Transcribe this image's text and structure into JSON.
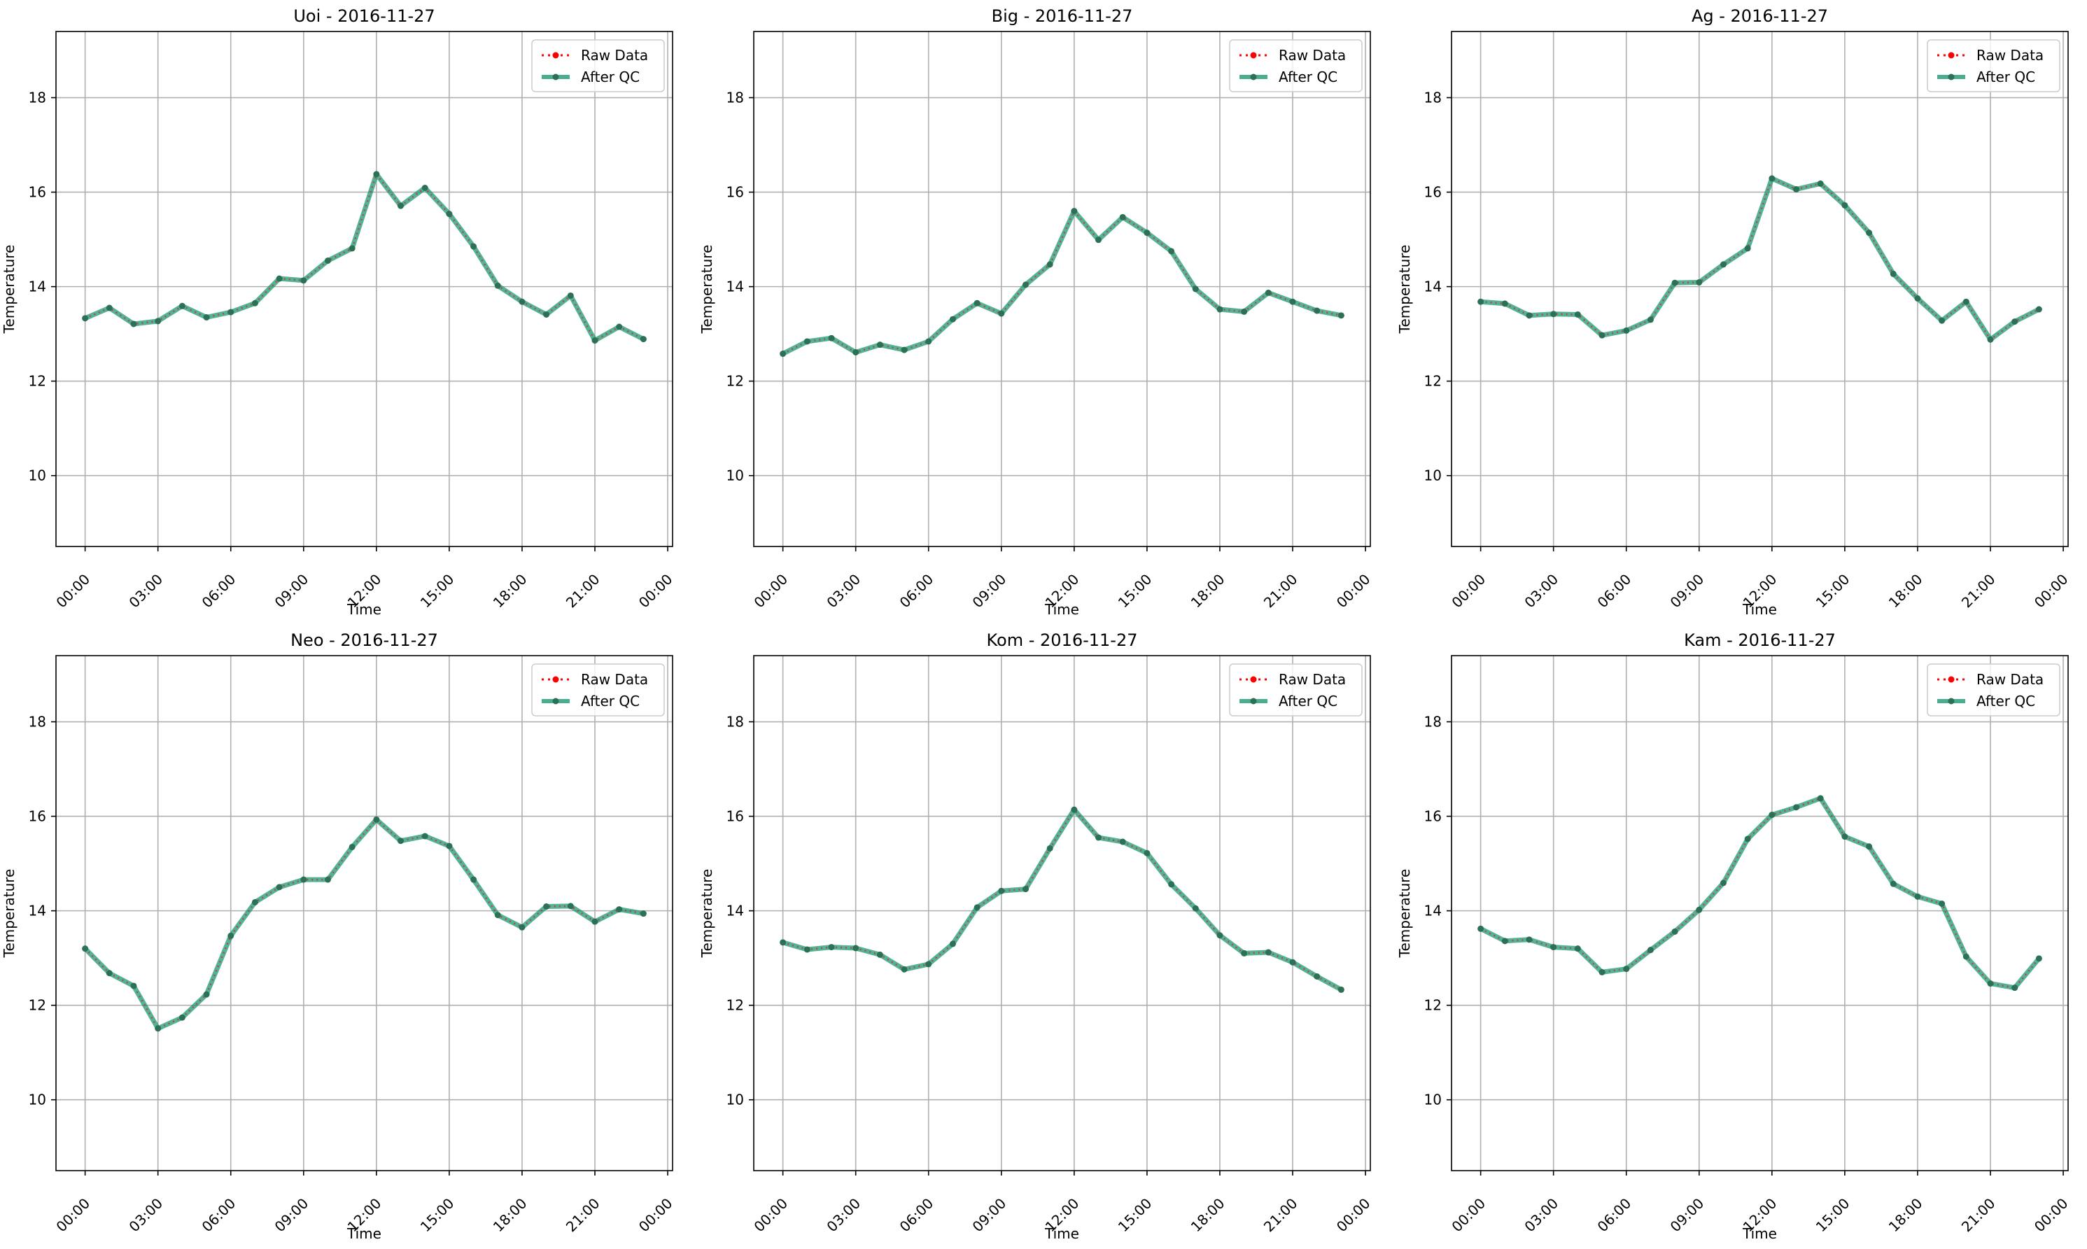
{
  "chart_data": [
    {
      "type": "line",
      "title": "Uoi - 2016-11-27",
      "xlabel": "Time",
      "ylabel": "Temperature",
      "x_ticks": [
        "00:00",
        "03:00",
        "06:00",
        "09:00",
        "12:00",
        "15:00",
        "18:00",
        "21:00",
        "00:00"
      ],
      "y_ticks": [
        10,
        12,
        14,
        16,
        18
      ],
      "xlim_hours": [
        -1.2,
        24.2
      ],
      "ylim": [
        8.5,
        19.4
      ],
      "grid": true,
      "legend": "top-right",
      "legend_entries": [
        "Raw Data",
        "After QC"
      ],
      "x_hours": [
        0,
        1,
        2,
        3,
        4,
        5,
        6,
        7,
        8,
        9,
        10,
        11,
        12,
        13,
        14,
        15,
        16,
        17,
        18,
        19,
        20,
        21,
        22,
        23
      ],
      "series": [
        {
          "name": "Raw Data",
          "values": [
            13.33,
            13.55,
            13.21,
            13.27,
            13.59,
            13.35,
            13.46,
            13.65,
            14.17,
            14.13,
            14.55,
            14.81,
            16.38,
            15.71,
            16.09,
            15.54,
            14.85,
            14.02,
            13.68,
            13.41,
            13.81,
            12.86,
            13.15,
            12.89
          ]
        },
        {
          "name": "After QC",
          "values": [
            13.33,
            13.55,
            13.21,
            13.27,
            13.59,
            13.35,
            13.46,
            13.65,
            14.17,
            14.13,
            14.55,
            14.81,
            16.38,
            15.71,
            16.09,
            15.54,
            14.85,
            14.02,
            13.68,
            13.41,
            13.81,
            12.86,
            13.15,
            12.89
          ]
        }
      ]
    },
    {
      "type": "line",
      "title": "Big - 2016-11-27",
      "xlabel": "Time",
      "ylabel": "Temperature",
      "x_ticks": [
        "00:00",
        "03:00",
        "06:00",
        "09:00",
        "12:00",
        "15:00",
        "18:00",
        "21:00",
        "00:00"
      ],
      "y_ticks": [
        10,
        12,
        14,
        16,
        18
      ],
      "xlim_hours": [
        -1.2,
        24.2
      ],
      "ylim": [
        8.5,
        19.4
      ],
      "grid": true,
      "legend": "top-right",
      "legend_entries": [
        "Raw Data",
        "After QC"
      ],
      "x_hours": [
        0,
        1,
        2,
        3,
        4,
        5,
        6,
        7,
        8,
        9,
        10,
        11,
        12,
        13,
        14,
        15,
        16,
        17,
        18,
        19,
        20,
        21,
        22,
        23
      ],
      "series": [
        {
          "name": "Raw Data",
          "values": [
            12.58,
            12.84,
            12.91,
            12.61,
            12.77,
            12.66,
            12.84,
            13.31,
            13.65,
            13.43,
            14.04,
            14.47,
            15.6,
            14.99,
            15.47,
            15.14,
            14.75,
            13.95,
            13.52,
            13.47,
            13.87,
            13.68,
            13.49,
            13.39
          ]
        },
        {
          "name": "After QC",
          "values": [
            12.58,
            12.84,
            12.91,
            12.61,
            12.77,
            12.66,
            12.84,
            13.31,
            13.65,
            13.43,
            14.04,
            14.47,
            15.6,
            14.99,
            15.47,
            15.14,
            14.75,
            13.95,
            13.52,
            13.47,
            13.87,
            13.68,
            13.49,
            13.39
          ]
        }
      ]
    },
    {
      "type": "line",
      "title": "Ag - 2016-11-27",
      "xlabel": "Time",
      "ylabel": "Temperature",
      "x_ticks": [
        "00:00",
        "03:00",
        "06:00",
        "09:00",
        "12:00",
        "15:00",
        "18:00",
        "21:00",
        "00:00"
      ],
      "y_ticks": [
        10,
        12,
        14,
        16,
        18
      ],
      "xlim_hours": [
        -1.2,
        24.2
      ],
      "ylim": [
        8.5,
        19.4
      ],
      "grid": true,
      "legend": "top-right",
      "legend_entries": [
        "Raw Data",
        "After QC"
      ],
      "x_hours": [
        0,
        1,
        2,
        3,
        4,
        5,
        6,
        7,
        8,
        9,
        10,
        11,
        12,
        13,
        14,
        15,
        16,
        17,
        18,
        19,
        20,
        21,
        22,
        23
      ],
      "series": [
        {
          "name": "Raw Data",
          "values": [
            13.68,
            13.64,
            13.39,
            13.42,
            13.41,
            12.97,
            13.07,
            13.3,
            14.08,
            14.09,
            14.47,
            14.81,
            16.29,
            16.06,
            16.18,
            15.72,
            15.14,
            14.27,
            13.75,
            13.28,
            13.68,
            12.88,
            13.26,
            13.52
          ]
        },
        {
          "name": "After QC",
          "values": [
            13.68,
            13.64,
            13.39,
            13.42,
            13.41,
            12.97,
            13.07,
            13.3,
            14.08,
            14.09,
            14.47,
            14.81,
            16.29,
            16.06,
            16.18,
            15.72,
            15.14,
            14.27,
            13.75,
            13.28,
            13.68,
            12.88,
            13.26,
            13.52
          ]
        }
      ]
    },
    {
      "type": "line",
      "title": "Neo - 2016-11-27",
      "xlabel": "Time",
      "ylabel": "Temperature",
      "x_ticks": [
        "00:00",
        "03:00",
        "06:00",
        "09:00",
        "12:00",
        "15:00",
        "18:00",
        "21:00",
        "00:00"
      ],
      "y_ticks": [
        10,
        12,
        14,
        16,
        18
      ],
      "xlim_hours": [
        -1.2,
        24.2
      ],
      "ylim": [
        8.5,
        19.4
      ],
      "grid": true,
      "legend": "top-right",
      "legend_entries": [
        "Raw Data",
        "After QC"
      ],
      "x_hours": [
        0,
        1,
        2,
        3,
        4,
        5,
        6,
        7,
        8,
        9,
        10,
        11,
        12,
        13,
        14,
        15,
        16,
        17,
        18,
        19,
        20,
        21,
        22,
        23
      ],
      "series": [
        {
          "name": "Raw Data",
          "values": [
            13.2,
            12.68,
            12.41,
            11.51,
            11.74,
            12.23,
            13.47,
            14.18,
            14.5,
            14.66,
            14.66,
            15.35,
            15.93,
            15.48,
            15.58,
            15.37,
            14.66,
            13.91,
            13.65,
            14.09,
            14.1,
            13.77,
            14.03,
            13.94
          ]
        },
        {
          "name": "After QC",
          "values": [
            13.2,
            12.68,
            12.41,
            11.51,
            11.74,
            12.23,
            13.47,
            14.18,
            14.5,
            14.66,
            14.66,
            15.35,
            15.93,
            15.48,
            15.58,
            15.37,
            14.66,
            13.91,
            13.65,
            14.09,
            14.1,
            13.77,
            14.03,
            13.94
          ]
        }
      ]
    },
    {
      "type": "line",
      "title": "Kom - 2016-11-27",
      "xlabel": "Time",
      "ylabel": "Temperature",
      "x_ticks": [
        "00:00",
        "03:00",
        "06:00",
        "09:00",
        "12:00",
        "15:00",
        "18:00",
        "21:00",
        "00:00"
      ],
      "y_ticks": [
        10,
        12,
        14,
        16,
        18
      ],
      "xlim_hours": [
        -1.2,
        24.2
      ],
      "ylim": [
        8.5,
        19.4
      ],
      "grid": true,
      "legend": "top-right",
      "legend_entries": [
        "Raw Data",
        "After QC"
      ],
      "x_hours": [
        0,
        1,
        2,
        3,
        4,
        5,
        6,
        7,
        8,
        9,
        10,
        11,
        12,
        13,
        14,
        15,
        16,
        17,
        18,
        19,
        20,
        21,
        22,
        23
      ],
      "series": [
        {
          "name": "Raw Data",
          "values": [
            13.33,
            13.18,
            13.23,
            13.21,
            13.07,
            12.76,
            12.87,
            13.3,
            14.07,
            14.42,
            14.46,
            15.32,
            16.14,
            15.55,
            15.46,
            15.22,
            14.56,
            14.05,
            13.48,
            13.1,
            13.12,
            12.91,
            12.61,
            12.33
          ]
        },
        {
          "name": "After QC",
          "values": [
            13.33,
            13.18,
            13.23,
            13.21,
            13.07,
            12.76,
            12.87,
            13.3,
            14.07,
            14.42,
            14.46,
            15.32,
            16.14,
            15.55,
            15.46,
            15.22,
            14.56,
            14.05,
            13.48,
            13.1,
            13.12,
            12.91,
            12.61,
            12.33
          ]
        }
      ]
    },
    {
      "type": "line",
      "title": "Kam - 2016-11-27",
      "xlabel": "Time",
      "ylabel": "Temperature",
      "x_ticks": [
        "00:00",
        "03:00",
        "06:00",
        "09:00",
        "12:00",
        "15:00",
        "18:00",
        "21:00",
        "00:00"
      ],
      "y_ticks": [
        10,
        12,
        14,
        16,
        18
      ],
      "xlim_hours": [
        -1.2,
        24.2
      ],
      "ylim": [
        8.5,
        19.4
      ],
      "grid": true,
      "legend": "top-right",
      "legend_entries": [
        "Raw Data",
        "After QC"
      ],
      "x_hours": [
        0,
        1,
        2,
        3,
        4,
        5,
        6,
        7,
        8,
        9,
        10,
        11,
        12,
        13,
        14,
        15,
        16,
        17,
        18,
        19,
        20,
        21,
        22,
        23
      ],
      "series": [
        {
          "name": "Raw Data",
          "values": [
            13.62,
            13.36,
            13.39,
            13.23,
            13.2,
            12.7,
            12.77,
            13.17,
            13.56,
            14.02,
            14.59,
            15.52,
            16.03,
            16.19,
            16.38,
            15.57,
            15.36,
            14.57,
            14.3,
            14.15,
            13.03,
            12.46,
            12.37,
            12.99
          ]
        },
        {
          "name": "After QC",
          "values": [
            13.62,
            13.36,
            13.39,
            13.23,
            13.2,
            12.7,
            12.77,
            13.17,
            13.56,
            14.02,
            14.59,
            15.52,
            16.03,
            16.19,
            16.38,
            15.57,
            15.36,
            14.57,
            14.3,
            14.15,
            13.03,
            12.46,
            12.37,
            12.99
          ]
        }
      ]
    }
  ],
  "colors": {
    "raw": "#ff0000",
    "qc_line": "#1a9a73",
    "qc_marker": "#2c7156",
    "grid": "#b0b0b0",
    "axes": "#000000"
  }
}
